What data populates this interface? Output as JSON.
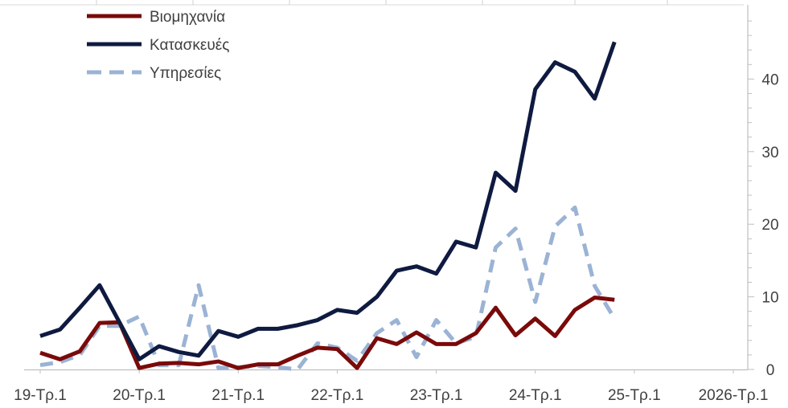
{
  "chart_data": {
    "type": "line",
    "title": "",
    "xlabel": "",
    "ylabel": "",
    "ylim": [
      0,
      50
    ],
    "yticks": [
      0,
      10,
      20,
      30,
      40
    ],
    "y_axis_side": "right",
    "grid": false,
    "legend_position": "top-left",
    "x_tick_labels": [
      "19-Τρ.1",
      "20-Τρ.1",
      "21-Τρ.1",
      "22-Τρ.1",
      "23-Τρ.1",
      "24-Τρ.1",
      "25-Τρ.1",
      "2026-Τρ.1"
    ],
    "x_tick_index": [
      0,
      5,
      10,
      15,
      20,
      25,
      30,
      35
    ],
    "n_points": 36,
    "series": [
      {
        "name": "Βιομηχανία",
        "color": "#7a0a0a",
        "dash": "solid",
        "values": [
          2.3,
          1.4,
          2.5,
          6.4,
          6.5,
          0.2,
          0.8,
          0.9,
          0.7,
          1.1,
          0.2,
          0.7,
          0.7,
          1.9,
          3.0,
          2.8,
          0.2,
          4.3,
          3.5,
          5.1,
          3.5,
          3.5,
          5.0,
          8.5,
          4.7,
          7.0,
          4.6,
          8.2,
          9.9,
          9.6
        ]
      },
      {
        "name": "Κατασκευές",
        "color": "#0f1a40",
        "dash": "solid",
        "values": [
          4.6,
          5.5,
          8.5,
          11.6,
          6.5,
          1.4,
          3.2,
          2.4,
          1.9,
          5.3,
          4.5,
          5.6,
          5.6,
          6.1,
          6.8,
          8.2,
          7.8,
          10.0,
          13.6,
          14.2,
          13.2,
          17.6,
          16.8,
          27.1,
          24.6,
          38.6,
          42.3,
          41.0,
          37.3,
          45.1
        ]
      },
      {
        "name": "Υπηρεσίες",
        "color": "#9bb3d4",
        "dash": "dashed",
        "values": [
          0.6,
          1.0,
          2.0,
          6.0,
          6.0,
          7.3,
          0.6,
          0.6,
          11.6,
          0.2,
          0.3,
          0.5,
          0.3,
          0.0,
          3.6,
          3.0,
          1.2,
          5.0,
          6.8,
          1.7,
          6.8,
          3.6,
          4.5,
          16.8,
          19.4,
          9.3,
          19.7,
          22.3,
          11.5,
          7.0
        ]
      }
    ],
    "series_x_index": [
      0,
      1,
      2,
      3,
      4,
      5,
      6,
      7,
      8,
      9,
      10,
      11,
      12,
      13,
      14,
      15,
      16,
      17,
      18,
      19,
      20,
      21,
      22,
      23,
      24,
      25,
      26,
      27,
      28,
      29
    ]
  }
}
